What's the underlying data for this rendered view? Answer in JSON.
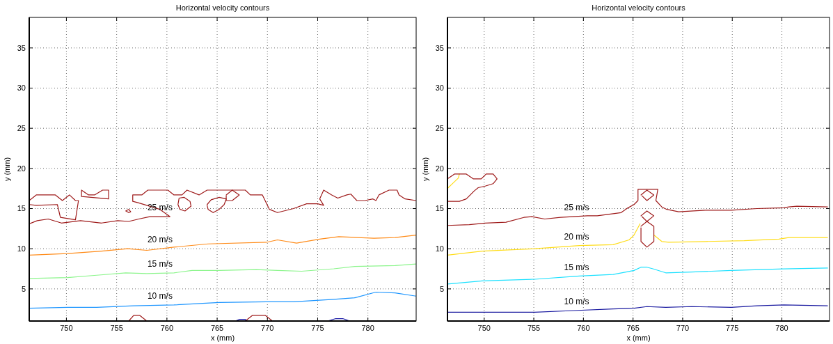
{
  "chart_data": [
    {
      "type": "line",
      "title": "Horizontal velocity contours",
      "xlabel": "x (mm)",
      "ylabel": "y (mm)",
      "xlim": [
        746.3,
        784.8
      ],
      "ylim": [
        1.0,
        38.8
      ],
      "xticks": [
        750,
        755,
        760,
        765,
        770,
        775,
        780
      ],
      "yticks": [
        5,
        10,
        15,
        20,
        25,
        30,
        35
      ],
      "grid": true,
      "series": [
        {
          "name": "10 m/s",
          "color": "#1e96ff",
          "x": [
            746.3,
            750.1,
            753.0,
            756.7,
            760.7,
            765.2,
            769.9,
            772.6,
            776.6,
            778.7,
            780.8,
            782.7,
            784.8
          ],
          "values": [
            2.6,
            2.7,
            2.7,
            2.9,
            3.0,
            3.3,
            3.4,
            3.4,
            3.7,
            3.9,
            4.6,
            4.5,
            4.1
          ]
        },
        {
          "name": "15 m/s",
          "color": "#8cf58c",
          "x": [
            746.3,
            750.1,
            753.0,
            755.9,
            758.0,
            760.7,
            762.5,
            765.2,
            768.9,
            771.0,
            773.4,
            776.6,
            778.7,
            782.7,
            784.8
          ],
          "values": [
            6.3,
            6.4,
            6.7,
            7.0,
            6.9,
            7.0,
            7.3,
            7.3,
            7.4,
            7.3,
            7.2,
            7.5,
            7.8,
            7.9,
            8.1
          ]
        },
        {
          "name": "20 m/s",
          "color": "#ff8c1a",
          "x": [
            746.3,
            750.1,
            753.5,
            756.1,
            758.0,
            760.7,
            764.1,
            769.9,
            771.0,
            772.9,
            775.2,
            777.1,
            780.6,
            782.7,
            784.8
          ],
          "values": [
            9.2,
            9.4,
            9.7,
            10.0,
            9.8,
            10.2,
            10.6,
            10.8,
            11.1,
            10.7,
            11.2,
            11.5,
            11.3,
            11.4,
            11.7
          ]
        },
        {
          "color": "#9e1a1a",
          "x": [
            746.3,
            747.0,
            748.9,
            749.6,
            750.3,
            750.9,
            751.2,
            750.9,
            749.4,
            749.1,
            747.0,
            746.3
          ],
          "values": [
            16.0,
            16.7,
            16.7,
            16.0,
            16.7,
            16.0,
            16.0,
            13.6,
            13.9,
            15.5,
            15.4,
            15.5
          ]
        },
        {
          "name": "25 m/s",
          "color": "#9e1a1a",
          "x": [
            746.3,
            747.1,
            748.2,
            749.5,
            751.4,
            753.5,
            755.1,
            756.2,
            757.2,
            758.3,
            760.3,
            759.3,
            757.2,
            756.6,
            756.6,
            757.5,
            758.1,
            760.1,
            760.7,
            761.5,
            762.0,
            763.2,
            764.0,
            767.8,
            768.3,
            769.5,
            770.2,
            771.0,
            772.6,
            773.9,
            775.0,
            775.6,
            775.2,
            775.6,
            776.4,
            777.0,
            777.9,
            778.3,
            778.9,
            779.7,
            780.5,
            780.8,
            781.1,
            782.1,
            782.9,
            783.1,
            783.7,
            784.8
          ],
          "values": [
            13.1,
            13.5,
            13.7,
            13.2,
            13.5,
            13.2,
            13.5,
            13.4,
            13.7,
            14.0,
            14.0,
            14.9,
            15.7,
            15.9,
            16.7,
            16.7,
            17.3,
            17.3,
            16.7,
            16.7,
            17.3,
            16.7,
            17.3,
            17.3,
            16.7,
            16.7,
            14.9,
            14.5,
            15.0,
            15.6,
            15.6,
            15.4,
            16.2,
            17.3,
            16.7,
            16.3,
            16.7,
            16.8,
            16.0,
            16.0,
            16.2,
            16.0,
            16.7,
            17.3,
            17.3,
            16.7,
            16.2,
            16.0
          ]
        },
        {
          "color": "#9e1a1a",
          "x": [
            751.5,
            752.2,
            752.8,
            753.6,
            754.2,
            754.2,
            751.5,
            751.5
          ],
          "values": [
            17.3,
            16.7,
            16.7,
            17.3,
            17.3,
            16.2,
            16.5,
            17.2
          ]
        },
        {
          "color": "#9e1a1a",
          "x": [
            755.9,
            756.2,
            756.4,
            756.2,
            755.95
          ],
          "values": [
            14.7,
            14.9,
            14.6,
            14.5,
            14.67
          ]
        },
        {
          "color": "#9e1a1a",
          "x": [
            761.2,
            761.7,
            762.3,
            762.4,
            761.8,
            761.3,
            761.1,
            761.2
          ],
          "values": [
            16.3,
            16.4,
            15.9,
            15.3,
            14.7,
            14.9,
            15.5,
            16.2
          ]
        },
        {
          "color": "#9e1a1a",
          "x": [
            764.0,
            764.4,
            765.2,
            765.9,
            765.7,
            765.2,
            764.6,
            764.1,
            764.0
          ],
          "values": [
            15.5,
            16.1,
            16.4,
            16.2,
            15.5,
            14.9,
            14.5,
            14.9,
            15.4
          ]
        },
        {
          "color": "#9e1a1a",
          "x": [
            765.9,
            766.5,
            767.2,
            766.5,
            765.9,
            765.9
          ],
          "values": [
            16.7,
            17.3,
            16.7,
            16.0,
            16.0,
            16.6
          ]
        },
        {
          "color": "#9e1a1a",
          "x": [
            756.2,
            756.7,
            757.3,
            758.0
          ],
          "values": [
            1.0,
            1.7,
            1.7,
            1.0
          ]
        },
        {
          "color": "#9e1a1a",
          "x": [
            767.8,
            768.5,
            769.8,
            770.5
          ],
          "values": [
            1.0,
            1.7,
            1.7,
            1.0
          ]
        },
        {
          "color": "#1a1aa6",
          "x": [
            766.8,
            767.2,
            767.8,
            767.9
          ],
          "values": [
            1.0,
            1.2,
            1.2,
            1.0
          ]
        },
        {
          "color": "#1a1aa6",
          "x": [
            776.0,
            776.8,
            777.5,
            778.2
          ],
          "values": [
            1.0,
            1.3,
            1.3,
            1.0
          ]
        }
      ]
    },
    {
      "type": "line",
      "title": "Horizontal velocity contours",
      "xlabel": "x (mm)",
      "ylabel": "y (mm)",
      "xlim": [
        746.3,
        784.8
      ],
      "ylim": [
        1.0,
        38.8
      ],
      "xticks": [
        750,
        755,
        760,
        765,
        770,
        775,
        780
      ],
      "yticks": [
        5,
        10,
        15,
        20,
        25,
        30,
        35
      ],
      "grid": true,
      "series": [
        {
          "name": "10 m/s",
          "color": "#1a1aa0",
          "x": [
            746.3,
            749.8,
            755.1,
            759.0,
            763.0,
            765.1,
            766.4,
            768.3,
            770.9,
            774.9,
            777.5,
            780.2,
            784.6
          ],
          "values": [
            2.1,
            2.1,
            2.1,
            2.3,
            2.5,
            2.6,
            2.8,
            2.7,
            2.8,
            2.7,
            2.9,
            3.0,
            2.9
          ]
        },
        {
          "name": "15 m/s",
          "color": "#1ee1ff",
          "x": [
            746.3,
            749.8,
            755.1,
            759.6,
            763.0,
            764.3,
            765.1,
            765.8,
            766.4,
            767.0,
            768.3,
            770.9,
            774.9,
            780.2,
            784.6
          ],
          "values": [
            5.6,
            6.0,
            6.2,
            6.6,
            6.8,
            7.1,
            7.3,
            7.7,
            7.7,
            7.5,
            7.0,
            7.1,
            7.3,
            7.5,
            7.6
          ]
        },
        {
          "name": "20 m/s",
          "color": "#ffdd1a",
          "x": [
            746.3,
            749.8,
            755.1,
            759.6,
            763.0,
            764.6,
            765.1,
            765.7
          ],
          "values": [
            9.2,
            9.7,
            10.0,
            10.4,
            10.5,
            11.1,
            11.7,
            13.1
          ]
        },
        {
          "color": "#ffdd1a",
          "x": [
            767.1,
            767.9,
            768.6,
            772.3,
            776.2,
            779.7,
            780.7,
            784.6
          ],
          "values": [
            11.7,
            10.9,
            10.8,
            10.9,
            11.0,
            11.2,
            11.4,
            11.4
          ]
        },
        {
          "color": "#ffdd1a",
          "x": [
            746.3,
            747.4,
            747.5
          ],
          "values": [
            17.5,
            18.8,
            19.3
          ]
        },
        {
          "color": "#9e1a1a",
          "x": [
            746.3,
            747.5,
            748.2,
            749.0,
            749.4,
            750.1,
            750.9,
            751.3,
            750.9,
            750.2,
            749.7,
            748.9,
            748.2,
            747.0,
            746.3
          ],
          "values": [
            15.9,
            15.9,
            16.2,
            17.2,
            17.6,
            17.8,
            18.1,
            18.7,
            19.3,
            19.3,
            18.7,
            18.7,
            19.3,
            19.3,
            18.7
          ]
        },
        {
          "name": "25 m/s",
          "color": "#9e1a1a",
          "x": [
            746.3,
            748.5,
            750.1,
            752.2,
            754.0,
            754.8,
            756.1,
            757.7,
            760.4,
            761.4,
            763.8,
            764.5,
            765.1,
            765.5,
            765.5,
            767.5,
            767.3,
            767.9,
            768.4,
            769.6,
            772.3,
            774.9,
            777.5,
            780.2,
            780.7,
            781.5,
            784.6
          ],
          "values": [
            12.9,
            13.0,
            13.2,
            13.3,
            13.9,
            14.0,
            13.7,
            13.9,
            14.1,
            14.1,
            14.5,
            15.1,
            15.5,
            16.0,
            17.4,
            17.4,
            16.0,
            15.2,
            14.9,
            14.6,
            14.8,
            14.8,
            15.0,
            15.1,
            15.2,
            15.3,
            15.2
          ]
        },
        {
          "color": "#9e1a1a",
          "x": [
            765.8,
            766.4,
            767.1,
            766.4,
            765.9
          ],
          "values": [
            16.7,
            17.3,
            16.7,
            16.0,
            16.6
          ]
        },
        {
          "color": "#9e1a1a",
          "x": [
            765.8,
            766.4,
            767.1,
            766.4,
            765.9
          ],
          "values": [
            14.1,
            14.7,
            14.1,
            13.4,
            14.0
          ]
        },
        {
          "color": "#9e1a1a",
          "x": [
            765.8,
            766.4,
            767.1,
            767.1,
            766.4,
            765.8,
            765.8
          ],
          "values": [
            12.8,
            13.4,
            12.8,
            10.9,
            10.2,
            10.9,
            12.6
          ]
        }
      ]
    }
  ]
}
